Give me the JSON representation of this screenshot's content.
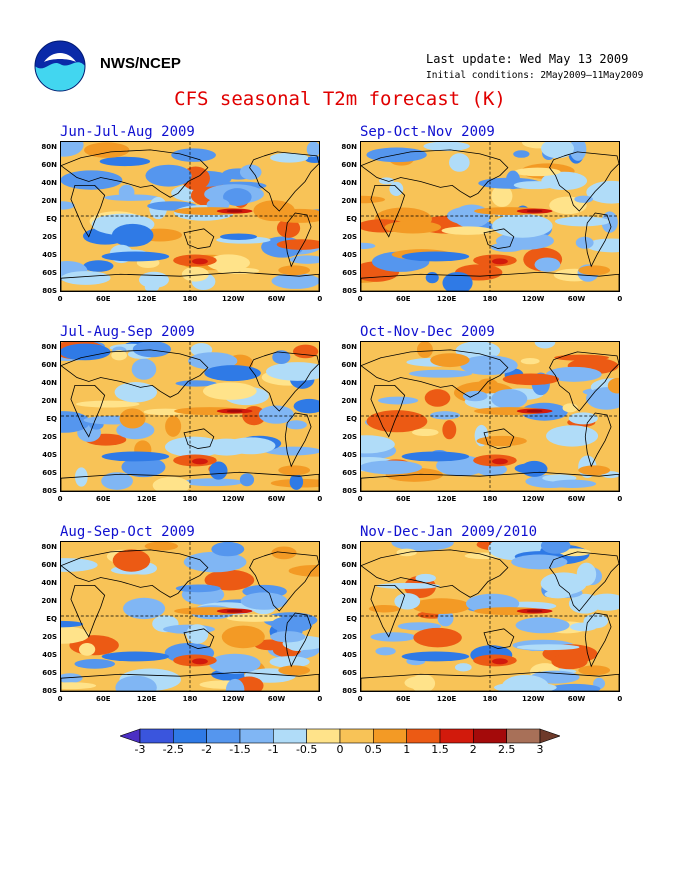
{
  "header": {
    "org": "NWS/NCEP",
    "last_update": "Last update: Wed May 13 2009",
    "initial_conditions": "Initial conditions: 2May2009–11May2009",
    "title": "CFS seasonal T2m forecast (K)"
  },
  "lat_labels": [
    "80N",
    "60N",
    "40N",
    "20N",
    "EQ",
    "20S",
    "40S",
    "60S",
    "80S"
  ],
  "lon_labels": [
    "0",
    "60E",
    "120E",
    "180",
    "120W",
    "60W",
    "0"
  ],
  "panels": [
    {
      "title": "Jun-Jul-Aug 2009",
      "seed": 1
    },
    {
      "title": "Sep-Oct-Nov 2009",
      "seed": 2
    },
    {
      "title": "Jul-Aug-Sep 2009",
      "seed": 3
    },
    {
      "title": "Oct-Nov-Dec 2009",
      "seed": 4
    },
    {
      "title": "Aug-Sep-Oct 2009",
      "seed": 5
    },
    {
      "title": "Nov-Dec-Jan 2009/2010",
      "seed": 6
    }
  ],
  "colorbar": {
    "labels": [
      "-3",
      "-2.5",
      "-2",
      "-1.5",
      "-1",
      "-0.5",
      "0",
      "0.5",
      "1",
      "1.5",
      "2",
      "2.5",
      "3"
    ],
    "colors": [
      "#4b2fc4",
      "#3a55dd",
      "#2f7ae6",
      "#5596ee",
      "#80b6f4",
      "#b0dcf8",
      "#ffe38a",
      "#f8c357",
      "#f39a25",
      "#ec5a14",
      "#d21a0c",
      "#a40a0a",
      "#a87058",
      "#6e3a2a"
    ]
  }
}
